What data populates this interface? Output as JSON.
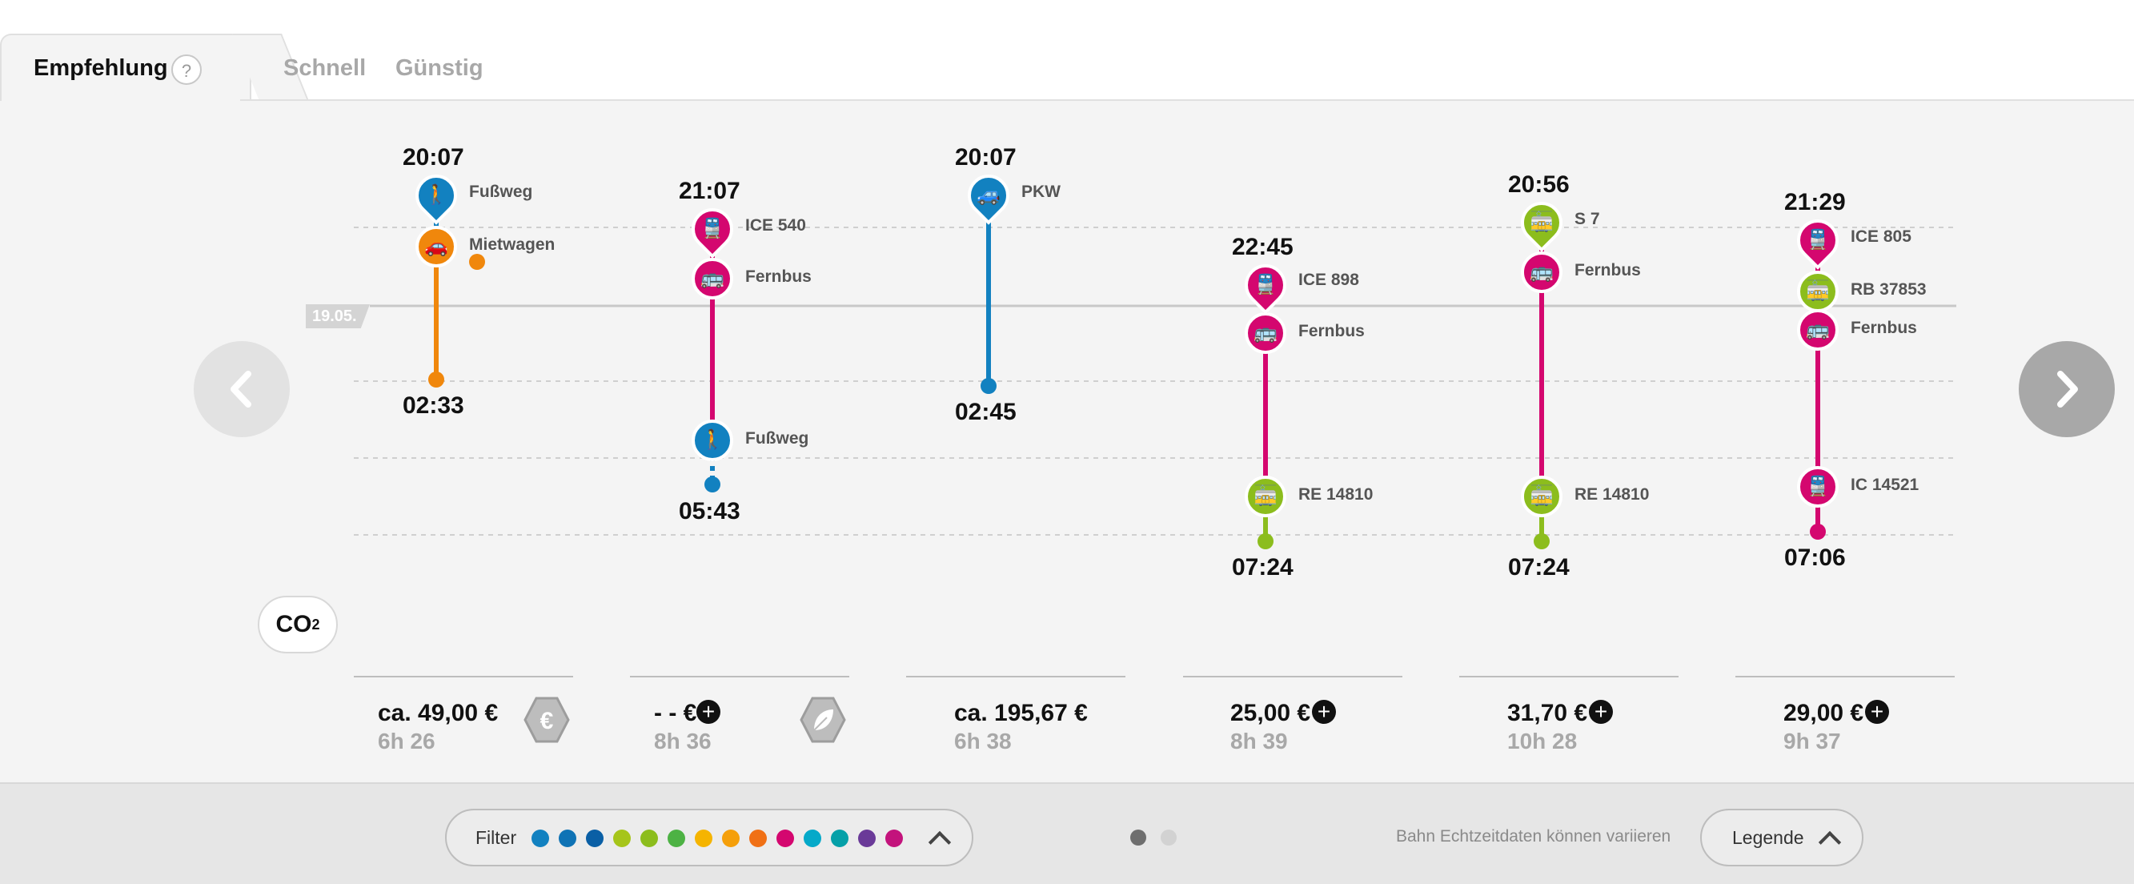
{
  "tabs": {
    "active_label": "Empfehlung",
    "help_glyph": "?",
    "fast_label": "Schnell",
    "cheap_label": "Günstig"
  },
  "date_tag": "19.05.",
  "colors": {
    "walk_blue": "#1281c0",
    "orange": "#f0870c",
    "magenta": "#d4076f",
    "green": "#8cbd1d",
    "grey_line": "#c8c8c8"
  },
  "icons": {
    "walk": "person-walking-icon",
    "rental": "rental-car-icon",
    "car": "car-icon",
    "train": "train-icon",
    "bus": "bus-icon",
    "regional": "regional-train-icon"
  },
  "routes": [
    {
      "departure": "20:07",
      "arrival": "02:33",
      "segments": [
        {
          "label": "Fußweg",
          "icon": "walk"
        },
        {
          "label": "Mietwagen",
          "icon": "rental"
        }
      ],
      "price": "ca. 49,00 €",
      "duration": "6h 26",
      "badge": "euro-badge-icon"
    },
    {
      "departure": "21:07",
      "arrival": "05:43",
      "segments": [
        {
          "label": "ICE 540",
          "icon": "train"
        },
        {
          "label": "Fernbus",
          "icon": "bus"
        },
        {
          "label": "Fußweg",
          "icon": "walk"
        }
      ],
      "price": "- - €",
      "duration": "8h 36",
      "badge": "leaf-badge-icon"
    },
    {
      "departure": "20:07",
      "arrival": "02:45",
      "segments": [
        {
          "label": "PKW",
          "icon": "car"
        }
      ],
      "price": "ca. 195,67 €",
      "duration": "6h 38"
    },
    {
      "departure": "22:45",
      "arrival": "07:24",
      "segments": [
        {
          "label": "ICE 898",
          "icon": "train"
        },
        {
          "label": "Fernbus",
          "icon": "bus"
        },
        {
          "label": "RE 14810",
          "icon": "regional"
        }
      ],
      "price": "25,00 €",
      "duration": "8h 39"
    },
    {
      "departure": "20:56",
      "arrival": "07:24",
      "segments": [
        {
          "label": "S 7",
          "icon": "regional"
        },
        {
          "label": "Fernbus",
          "icon": "bus"
        },
        {
          "label": "RE 14810",
          "icon": "regional"
        }
      ],
      "price": "31,70 €",
      "duration": "10h 28"
    },
    {
      "departure": "21:29",
      "arrival": "07:06",
      "segments": [
        {
          "label": "ICE 805",
          "icon": "train"
        },
        {
          "label": "RB 37853",
          "icon": "regional"
        },
        {
          "label": "Fernbus",
          "icon": "bus"
        },
        {
          "label": "IC 14521",
          "icon": "train"
        }
      ],
      "price": "29,00 €",
      "duration": "9h 37"
    }
  ],
  "co2": {
    "text": "CO",
    "sub": "2"
  },
  "footer": {
    "filter_label": "Filter",
    "filter_colors": [
      "#1281c0",
      "#0f73b5",
      "#0a5fa5",
      "#a6c51a",
      "#8cbd1d",
      "#4db244",
      "#f5b400",
      "#f59f0a",
      "#f07015",
      "#d4076f",
      "#05a9c9",
      "#05a0a8",
      "#6a3a98",
      "#c3137c"
    ],
    "notice": "Bahn Echtzeitdaten können variieren",
    "legend_label": "Legende"
  }
}
